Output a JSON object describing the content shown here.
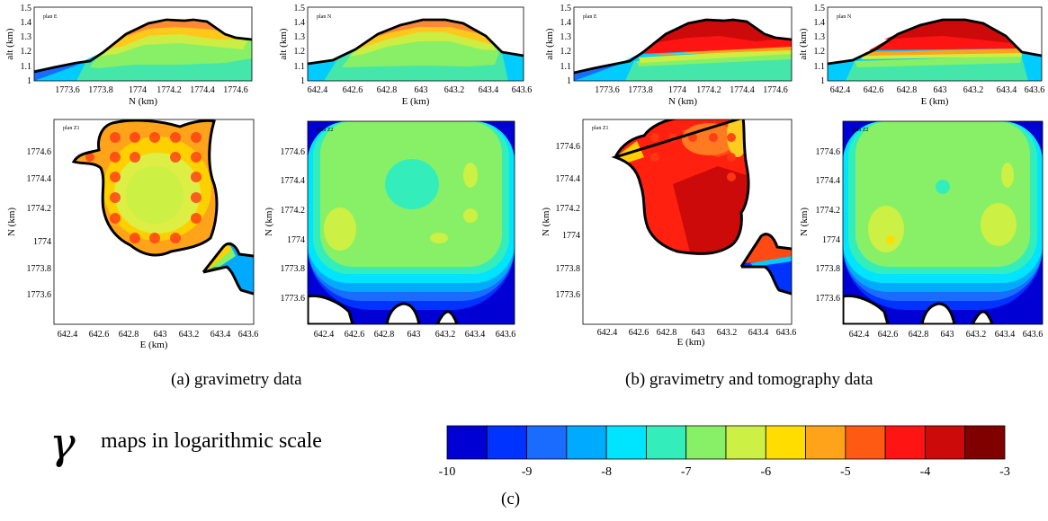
{
  "colorscale": {
    "colors": [
      "#0000d4",
      "#0033ff",
      "#1a6cff",
      "#00aaff",
      "#00e5ff",
      "#33eebb",
      "#88f066",
      "#ccf044",
      "#ffdd00",
      "#ffa41a",
      "#ff5a14",
      "#ff1414",
      "#cc0a0a",
      "#800000"
    ],
    "tick_labels": [
      "-10",
      "-9",
      "-8",
      "-7",
      "-6",
      "-5",
      "-4",
      "-3"
    ]
  },
  "legend_text": "maps in logarithmic scale",
  "gamma_symbol": "γ",
  "captions": {
    "a": "(a)  gravimetry data",
    "b": "(b)  gravimetry and tomography data",
    "c": "(c)"
  },
  "axes": {
    "alt_label": "alt (km)",
    "n_label": "N (km)",
    "e_label": "E (km)",
    "alt_ticks": [
      "1",
      "1.1",
      "1.2",
      "1.3",
      "1.4",
      "1.5"
    ],
    "n_section_ticks": [
      "1773.6",
      "1773.8",
      "1774",
      "1774.2",
      "1774.4",
      "1774.6"
    ],
    "e_ticks": [
      "642.4",
      "642.6",
      "642.8",
      "643",
      "643.2",
      "643.4",
      "643.6"
    ],
    "n_map_ticks": [
      "1773.6",
      "1773.8",
      "1774",
      "1774.2",
      "1774.4",
      "1774.6"
    ]
  },
  "panels": {
    "a_planE": {
      "plan_label": "plan E"
    },
    "a_planN": {
      "plan_label": "plan N"
    },
    "a_planZ1": {
      "plan_label": "plan Z1"
    },
    "a_planZ2": {
      "plan_label": "plan Z2"
    },
    "b_planE": {
      "plan_label": "plan E"
    },
    "b_planN": {
      "plan_label": "plan N"
    },
    "b_planZ1": {
      "plan_label": "plan Z1"
    },
    "b_planZ2": {
      "plan_label": "plan Z2"
    }
  }
}
